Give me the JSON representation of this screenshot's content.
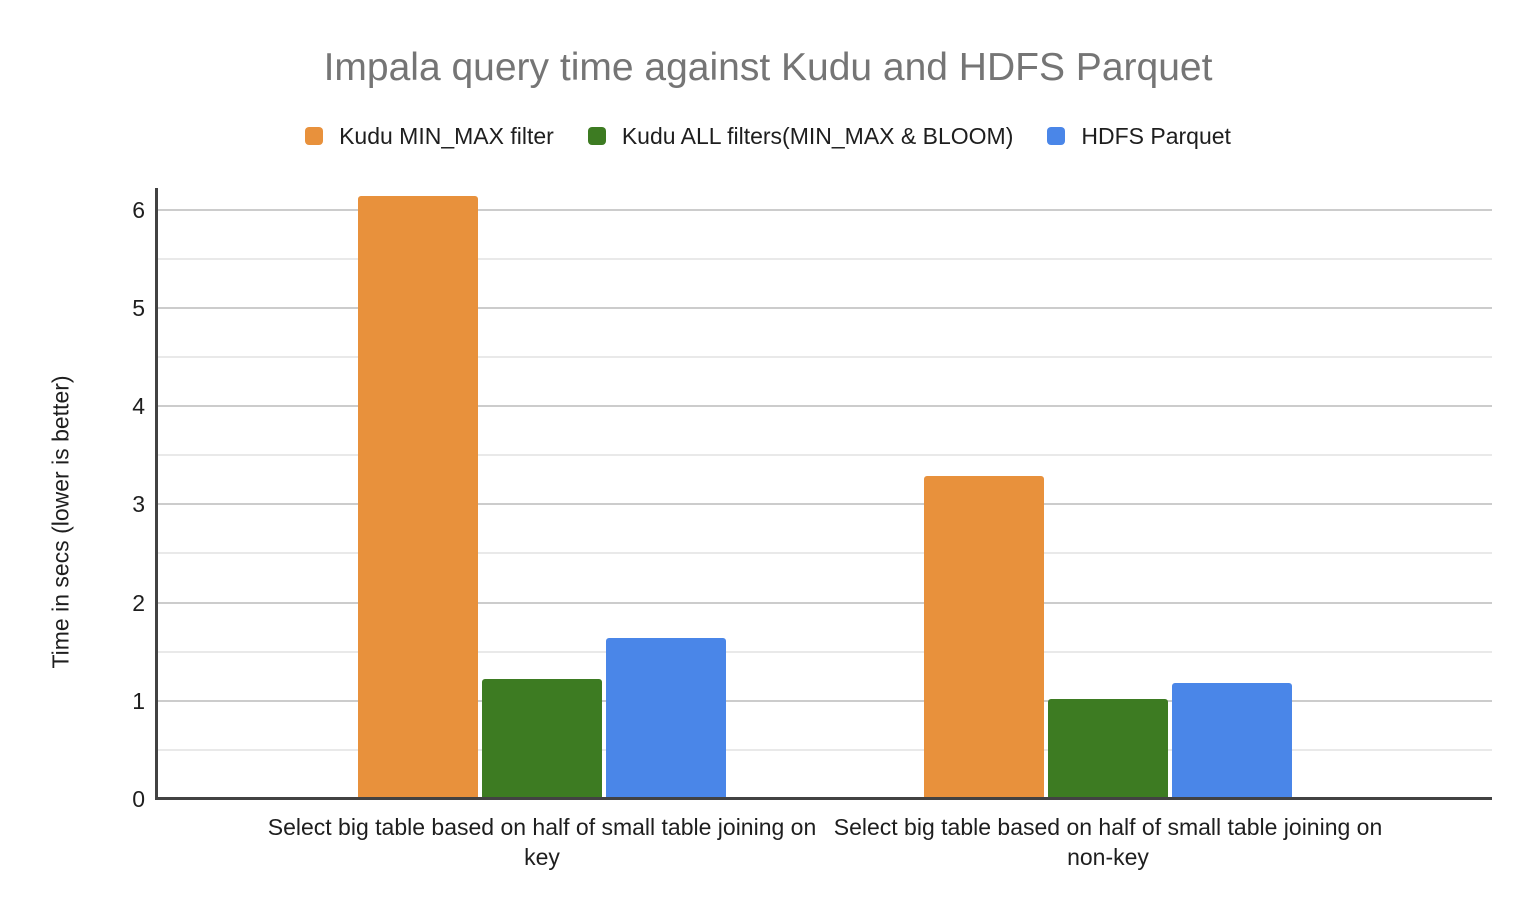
{
  "chart_data": {
    "type": "bar",
    "title": "Impala query time against Kudu and HDFS Parquet",
    "ylabel": "Time in secs (lower is better)",
    "xlabel": "",
    "categories": [
      "Select big table based on half of small table joining on key",
      "Select big table based on half of small table joining on non-key"
    ],
    "series": [
      {
        "name": "Kudu MIN_MAX filter",
        "color": "#E8913C",
        "values": [
          6.14,
          3.29
        ]
      },
      {
        "name": "Kudu ALL filters(MIN_MAX & BLOOM)",
        "color": "#3D7B22",
        "values": [
          1.22,
          1.02
        ]
      },
      {
        "name": "HDFS Parquet",
        "color": "#4A86E8",
        "values": [
          1.64,
          1.18
        ]
      }
    ],
    "ylim": [
      0,
      6.2
    ],
    "yticks": [
      0,
      1,
      2,
      3,
      4,
      5,
      6
    ],
    "minor_grid_step": 0.5,
    "grid": true,
    "legend_position": "top",
    "colors": {
      "title_text": "#757575",
      "label_text": "#1E1E1E",
      "grid_major": "#CCCCCC",
      "grid_minor": "#E9E9E9",
      "axis_line": "#424242",
      "background": "#FFFFFF"
    }
  }
}
